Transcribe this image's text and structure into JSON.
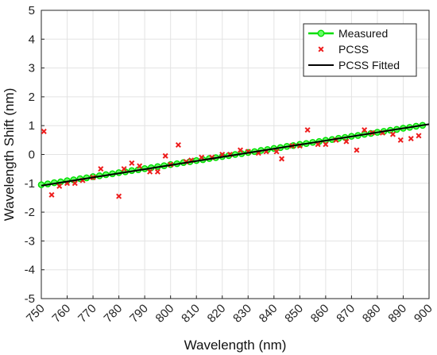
{
  "chart_data": {
    "type": "scatter",
    "xlabel": "Wavelength (nm)",
    "ylabel": "Wavelength Shift (nm)",
    "xlim": [
      750,
      900
    ],
    "ylim": [
      -5,
      5
    ],
    "x_ticks": [
      750,
      760,
      770,
      780,
      790,
      800,
      810,
      820,
      830,
      840,
      850,
      860,
      870,
      880,
      890,
      900
    ],
    "y_ticks": [
      -5,
      -4,
      -3,
      -2,
      -1,
      0,
      1,
      2,
      3,
      4,
      5
    ],
    "grid": true,
    "legend_position": "top-right",
    "series": [
      {
        "name": "Measured",
        "style": "line-markers",
        "color": "#00dd00",
        "marker_face": "#66ff66",
        "x": [
          750,
          752.5,
          755,
          757.5,
          760,
          762.5,
          765,
          767.5,
          770,
          772.5,
          775,
          777.5,
          780,
          782.5,
          785,
          787.5,
          790,
          792.5,
          795,
          797.5,
          800,
          802.5,
          805,
          807.5,
          810,
          812.5,
          815,
          817.5,
          820,
          822.5,
          825,
          827.5,
          830,
          832.5,
          835,
          837.5,
          840,
          842.5,
          845,
          847.5,
          850,
          852.5,
          855,
          857.5,
          860,
          862.5,
          865,
          867.5,
          870,
          872.5,
          875,
          877.5,
          880,
          882.5,
          885,
          887.5,
          890,
          892.5,
          895,
          897.5
        ],
        "y": [
          -1.05,
          -1.02,
          -0.98,
          -0.95,
          -0.91,
          -0.88,
          -0.84,
          -0.81,
          -0.77,
          -0.74,
          -0.7,
          -0.67,
          -0.63,
          -0.6,
          -0.56,
          -0.53,
          -0.49,
          -0.46,
          -0.42,
          -0.39,
          -0.35,
          -0.32,
          -0.28,
          -0.25,
          -0.21,
          -0.18,
          -0.14,
          -0.11,
          -0.07,
          -0.04,
          0.0,
          0.03,
          0.07,
          0.1,
          0.14,
          0.17,
          0.21,
          0.24,
          0.28,
          0.31,
          0.35,
          0.38,
          0.42,
          0.45,
          0.49,
          0.52,
          0.56,
          0.59,
          0.63,
          0.66,
          0.7,
          0.73,
          0.77,
          0.8,
          0.84,
          0.87,
          0.91,
          0.94,
          0.98,
          1.01
        ]
      },
      {
        "name": "PCSS",
        "style": "x-markers",
        "color": "#ee1c1c",
        "x": [
          751,
          754,
          757,
          760,
          763,
          766,
          770,
          773,
          780,
          782,
          785,
          788,
          792,
          795,
          798,
          800,
          803,
          806,
          808,
          812,
          816,
          820,
          823,
          827,
          830,
          834,
          837,
          841,
          843,
          847,
          850,
          853,
          857,
          860,
          864,
          868,
          872,
          875,
          878,
          882,
          886,
          889,
          893,
          896
        ],
        "y": [
          0.8,
          -1.4,
          -1.1,
          -1.0,
          -1.0,
          -0.9,
          -0.8,
          -0.5,
          -1.45,
          -0.5,
          -0.3,
          -0.4,
          -0.6,
          -0.6,
          -0.05,
          -0.35,
          0.33,
          -0.25,
          -0.2,
          -0.1,
          -0.1,
          0.0,
          0.0,
          0.15,
          0.1,
          0.05,
          0.1,
          0.1,
          -0.15,
          0.3,
          0.3,
          0.85,
          0.35,
          0.35,
          0.5,
          0.45,
          0.15,
          0.85,
          0.75,
          0.75,
          0.7,
          0.5,
          0.55,
          0.65
        ]
      },
      {
        "name": "PCSS Fitted",
        "style": "line",
        "color": "#000000",
        "x": [
          750,
          900
        ],
        "y": [
          -1.08,
          1.05
        ]
      }
    ]
  }
}
